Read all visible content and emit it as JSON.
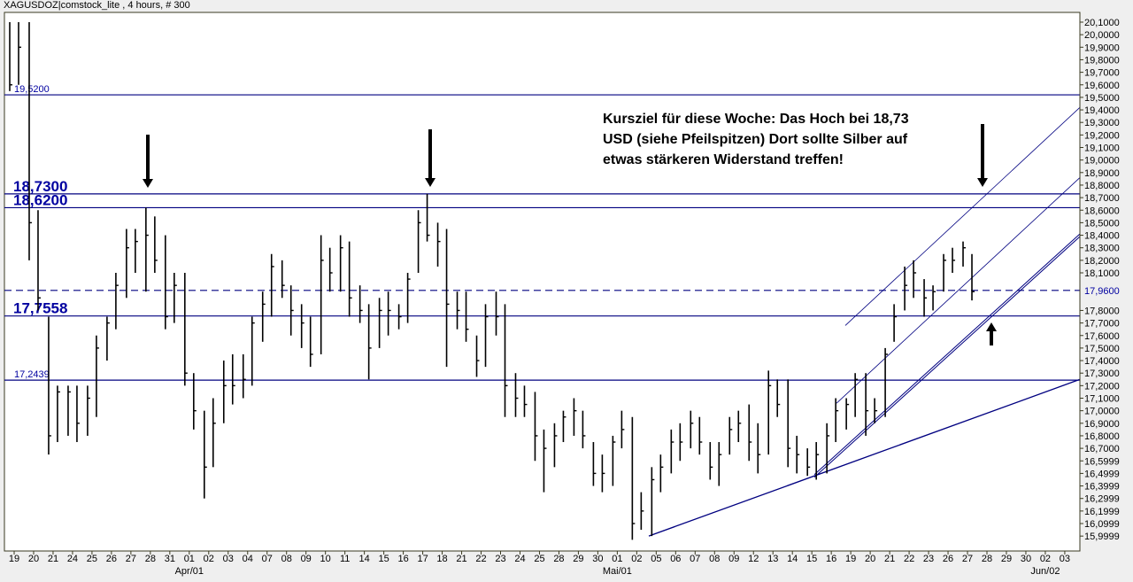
{
  "title": "XAGUSDOZ|comstock_lite , 4 hours, # 300",
  "annotation": {
    "lines": [
      "Kursziel für diese Woche: Das Hoch bei 18,73",
      "USD (siehe Pfeilspitzen) Dort sollte Silber auf",
      "etwas stärkeren Widerstand treffen!"
    ]
  },
  "colors": {
    "bars": "#000000",
    "lines": "#000080",
    "label_blue": "#0000a0",
    "plot_bg": "#ffffff",
    "outer_bg": "#efefef"
  },
  "chart_data": {
    "type": "ohlc-bar",
    "instrument": "XAGUSDOZ",
    "interval": "4 hours",
    "ylim": [
      15.9999,
      20.1
    ],
    "y_ticks": [
      "20,1000",
      "20,0000",
      "19,9000",
      "19,8000",
      "19,7000",
      "19,6000",
      "19,5000",
      "19,4000",
      "19,3000",
      "19,2000",
      "19,1000",
      "19,0000",
      "18,9000",
      "18,8000",
      "18,7000",
      "18,6000",
      "18,5000",
      "18,4000",
      "18,3000",
      "18,2000",
      "18,1000",
      "17,8000",
      "17,7000",
      "17,6000",
      "17,5000",
      "17,4000",
      "17,3000",
      "17,2000",
      "17,1000",
      "17,0000",
      "16,9000",
      "16,8000",
      "16,7000",
      "16,5999",
      "16,4999",
      "16,3999",
      "16,2999",
      "16,1999",
      "16,0999",
      "15,9999"
    ],
    "x_ticks": [
      "19",
      "20",
      "21",
      "24",
      "25",
      "26",
      "27",
      "28",
      "31",
      "01",
      "02",
      "03",
      "04",
      "07",
      "08",
      "09",
      "10",
      "11",
      "14",
      "15",
      "16",
      "17",
      "18",
      "21",
      "22",
      "23",
      "24",
      "25",
      "28",
      "29",
      "30",
      "01",
      "02",
      "05",
      "06",
      "07",
      "08",
      "09",
      "12",
      "13",
      "14",
      "15",
      "16",
      "19",
      "20",
      "21",
      "22",
      "23",
      "26",
      "27",
      "28",
      "29",
      "30",
      "02",
      "03"
    ],
    "month_labels": [
      {
        "day_index": 9,
        "text": "Apr/01"
      },
      {
        "day_index": 31,
        "text": "Mai/01"
      },
      {
        "day_index": 53,
        "text": "Jun/02"
      }
    ],
    "bars_hlc_by_day": [
      [
        [
          20.1,
          19.55,
          19.6
        ],
        [
          20.1,
          19.6,
          19.9
        ]
      ],
      [
        [
          20.1,
          18.2,
          18.5
        ],
        [
          18.6,
          17.8,
          17.9
        ]
      ],
      [
        [
          17.75,
          16.65,
          16.8
        ],
        [
          17.2,
          16.75,
          17.15
        ]
      ],
      [
        [
          17.2,
          16.8,
          17.15
        ],
        [
          17.2,
          16.75,
          16.9
        ]
      ],
      [
        [
          17.2,
          16.8,
          17.1
        ],
        [
          17.6,
          16.95,
          17.5
        ]
      ],
      [
        [
          17.75,
          17.4,
          17.7
        ],
        [
          18.1,
          17.65,
          18.0
        ]
      ],
      [
        [
          18.45,
          17.9,
          18.3
        ],
        [
          18.45,
          18.1,
          18.35
        ]
      ],
      [
        [
          18.62,
          17.95,
          18.4
        ],
        [
          18.55,
          18.1,
          18.2
        ]
      ],
      [
        [
          18.4,
          17.65,
          17.75
        ],
        [
          18.1,
          17.7,
          18.0
        ]
      ],
      [
        [
          18.1,
          17.2,
          17.3
        ],
        [
          17.3,
          16.85,
          17.0
        ]
      ],
      [
        [
          17.0,
          16.3,
          16.55
        ],
        [
          17.1,
          16.55,
          16.9
        ]
      ],
      [
        [
          17.4,
          16.9,
          17.2
        ],
        [
          17.45,
          17.05,
          17.2
        ]
      ],
      [
        [
          17.45,
          17.1,
          17.25
        ],
        [
          17.75,
          17.2,
          17.7
        ]
      ],
      [
        [
          17.95,
          17.55,
          17.85
        ],
        [
          18.25,
          17.75,
          18.15
        ]
      ],
      [
        [
          18.2,
          17.9,
          18.0
        ],
        [
          18.0,
          17.6,
          17.8
        ]
      ],
      [
        [
          17.85,
          17.5,
          17.7
        ],
        [
          17.75,
          17.35,
          17.45
        ]
      ],
      [
        [
          18.4,
          17.45,
          18.2
        ],
        [
          18.3,
          17.95,
          18.1
        ]
      ],
      [
        [
          18.4,
          17.95,
          18.3
        ],
        [
          18.35,
          17.75,
          17.9
        ]
      ],
      [
        [
          18.0,
          17.7,
          17.8
        ],
        [
          17.85,
          17.25,
          17.5
        ]
      ],
      [
        [
          17.9,
          17.5,
          17.8
        ],
        [
          17.95,
          17.6,
          17.8
        ]
      ],
      [
        [
          17.85,
          17.65,
          17.75
        ],
        [
          18.1,
          17.7,
          18.05
        ]
      ],
      [
        [
          18.6,
          18.1,
          18.5
        ],
        [
          18.73,
          18.35,
          18.4
        ]
      ],
      [
        [
          18.5,
          18.15,
          18.35
        ],
        [
          18.45,
          17.35,
          17.85
        ]
      ],
      [
        [
          17.95,
          17.65,
          17.8
        ],
        [
          17.95,
          17.55,
          17.65
        ]
      ],
      [
        [
          17.6,
          17.27,
          17.4
        ],
        [
          17.85,
          17.35,
          17.75
        ]
      ],
      [
        [
          17.95,
          17.6,
          17.75
        ],
        [
          17.85,
          16.95,
          17.2
        ]
      ],
      [
        [
          17.3,
          16.95,
          17.1
        ],
        [
          17.2,
          16.95,
          17.05
        ]
      ],
      [
        [
          17.15,
          16.6,
          16.8
        ],
        [
          16.85,
          16.35,
          16.7
        ]
      ],
      [
        [
          16.9,
          16.55,
          16.8
        ],
        [
          17.0,
          16.75,
          16.95
        ]
      ],
      [
        [
          17.1,
          16.8,
          17.0
        ],
        [
          17.0,
          16.7,
          16.8
        ]
      ],
      [
        [
          16.75,
          16.4,
          16.5
        ],
        [
          16.65,
          16.35,
          16.5
        ]
      ],
      [
        [
          16.8,
          16.4,
          16.75
        ],
        [
          17.0,
          16.7,
          16.85
        ]
      ],
      [
        [
          16.95,
          15.97,
          16.1
        ],
        [
          16.35,
          16.05,
          16.2
        ]
      ],
      [
        [
          16.55,
          16.0,
          16.45
        ],
        [
          16.65,
          16.35,
          16.55
        ]
      ],
      [
        [
          16.85,
          16.5,
          16.75
        ],
        [
          16.9,
          16.6,
          16.75
        ]
      ],
      [
        [
          17.0,
          16.7,
          16.9
        ],
        [
          16.95,
          16.65,
          16.75
        ]
      ],
      [
        [
          16.75,
          16.45,
          16.55
        ],
        [
          16.75,
          16.4,
          16.65
        ]
      ],
      [
        [
          16.95,
          16.65,
          16.85
        ],
        [
          17.0,
          16.75,
          16.9
        ]
      ],
      [
        [
          17.05,
          16.6,
          16.75
        ],
        [
          16.9,
          16.5,
          16.65
        ]
      ],
      [
        [
          17.32,
          16.65,
          17.2
        ],
        [
          17.25,
          16.95,
          17.05
        ]
      ],
      [
        [
          17.25,
          16.55,
          16.7
        ],
        [
          16.8,
          16.5,
          16.65
        ]
      ],
      [
        [
          16.7,
          16.48,
          16.55
        ],
        [
          16.75,
          16.45,
          16.65
        ]
      ],
      [
        [
          16.9,
          16.5,
          16.8
        ],
        [
          17.1,
          16.75,
          17.0
        ]
      ],
      [
        [
          17.1,
          16.85,
          17.05
        ],
        [
          17.3,
          16.95,
          17.25
        ]
      ],
      [
        [
          17.3,
          16.8,
          17.0
        ],
        [
          17.1,
          16.9,
          17.0
        ]
      ],
      [
        [
          17.5,
          16.95,
          17.45
        ],
        [
          17.85,
          17.55,
          17.75
        ]
      ],
      [
        [
          18.15,
          17.8,
          18.0
        ],
        [
          18.2,
          17.9,
          18.1
        ]
      ],
      [
        [
          18.05,
          17.75,
          17.9
        ],
        [
          18.0,
          17.8,
          17.95
        ]
      ],
      [
        [
          18.25,
          17.95,
          18.2
        ],
        [
          18.3,
          18.1,
          18.2
        ]
      ],
      [
        [
          18.35,
          18.15,
          18.3
        ],
        [
          18.25,
          17.88,
          17.95
        ]
      ]
    ],
    "horizontal_levels": [
      {
        "value": 19.52,
        "label": "19,5200",
        "style": "solid",
        "label_size": "small"
      },
      {
        "value": 18.73,
        "label": "18,7300",
        "style": "solid",
        "label_size": "large"
      },
      {
        "value": 18.62,
        "label": "18,6200",
        "style": "solid",
        "label_size": "large"
      },
      {
        "value": 17.96,
        "label": "17,9600",
        "style": "dashed",
        "label_size": "axis"
      },
      {
        "value": 17.7558,
        "label": "17,7558",
        "style": "solid",
        "label_size": "large"
      },
      {
        "value": 17.2439,
        "label": "17,2439",
        "style": "solid",
        "label_size": "small"
      }
    ],
    "trendlines": [
      {
        "from": [
          32.62,
          16.0
        ],
        "to": [
          54.78,
          17.25
        ],
        "style": "single"
      },
      {
        "from": [
          41.13,
          16.48
        ],
        "to": [
          54.78,
          18.4
        ],
        "style": "double"
      },
      {
        "from": [
          42.27,
          17.06
        ],
        "to": [
          54.78,
          18.86
        ],
        "style": "thin"
      },
      {
        "from": [
          42.72,
          17.68
        ],
        "to": [
          54.78,
          19.42
        ],
        "style": "thin"
      }
    ]
  }
}
